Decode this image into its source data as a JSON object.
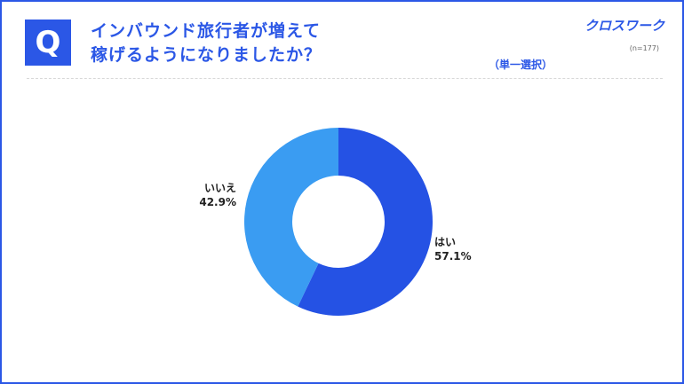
{
  "header": {
    "q_mark": "Q",
    "title_line1": "インバウンド旅行者が増えて",
    "title_line2": "稼げるようになりましたか？",
    "brand": "クロスワーク",
    "sample_size": "(n=177)",
    "answer_type": "（単一選択）"
  },
  "colors": {
    "accent": "#2b57e6",
    "slice_yes": "#2552e4",
    "slice_no": "#3a9cf2"
  },
  "chart_data": {
    "type": "pie",
    "donut": true,
    "slices": [
      {
        "label": "はい",
        "value": 57.1,
        "value_label": "57.1%",
        "color": "#2552e4"
      },
      {
        "label": "いいえ",
        "value": 42.9,
        "value_label": "42.9%",
        "color": "#3a9cf2"
      }
    ],
    "start": "top",
    "direction": "clockwise"
  }
}
